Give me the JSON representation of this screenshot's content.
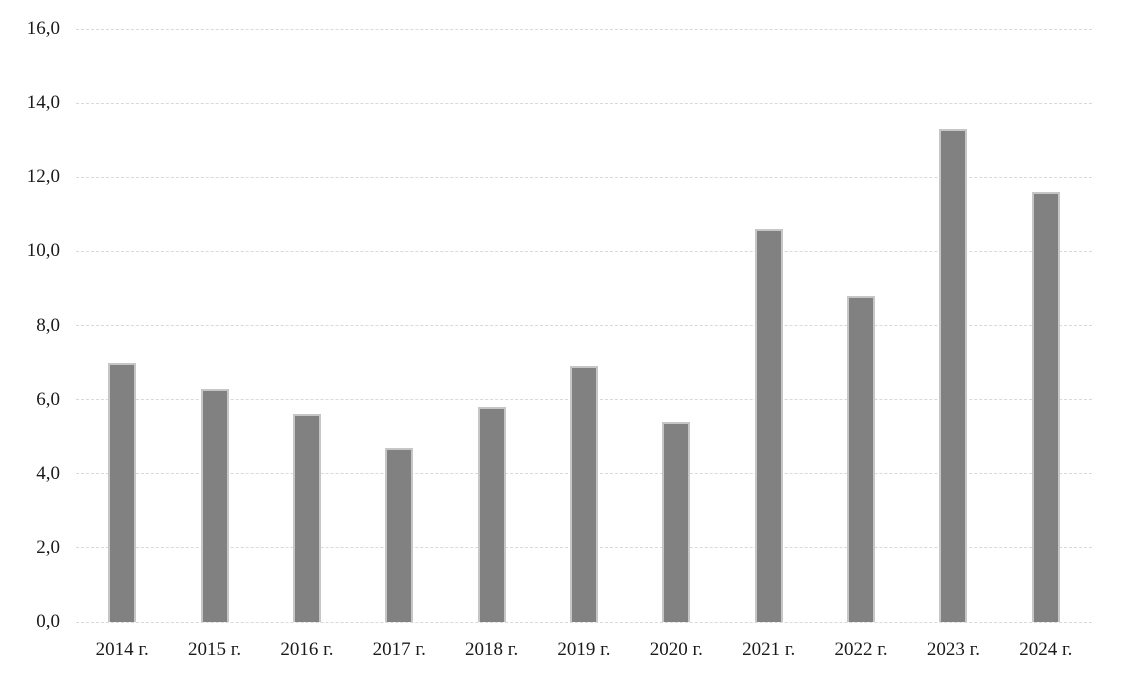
{
  "chart_data": {
    "type": "bar",
    "title": "",
    "xlabel": "",
    "ylabel": "",
    "categories": [
      "2014 г.",
      "2015 г.",
      "2016 г.",
      "2017 г.",
      "2018 г.",
      "2019 г.",
      "2020 г.",
      "2021 г.",
      "2022 г.",
      "2023 г.",
      "2024 г."
    ],
    "values": [
      7.0,
      6.3,
      5.6,
      4.7,
      5.8,
      6.9,
      5.4,
      10.6,
      8.8,
      13.3,
      11.6
    ],
    "ylim": [
      0,
      16
    ],
    "ytick_step": 2,
    "ytick_labels": [
      "0,0",
      "2,0",
      "4,0",
      "6,0",
      "8,0",
      "10,0",
      "12,0",
      "14,0",
      "16,0"
    ],
    "grid": true,
    "gridline_style": "dashed",
    "legend_position": "none",
    "decimal_separator": ",",
    "colors": {
      "bar_fill": "#818181",
      "bar_border": "#c6c6c6",
      "gridline": "#d9d9d9",
      "text": "#1a1a1a",
      "background": "#ffffff"
    }
  }
}
